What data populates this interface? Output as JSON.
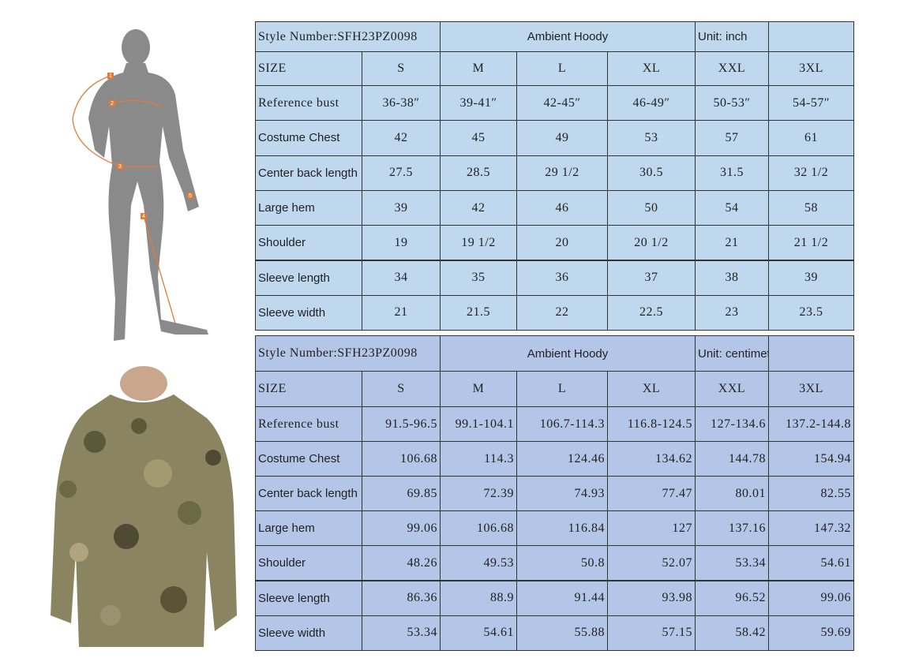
{
  "figure": {
    "markers": [
      "1",
      "2",
      "3",
      "4",
      "5"
    ]
  },
  "tables": [
    {
      "header": {
        "style": "Style Number:SFH23PZ0098",
        "name": "Ambient Hoody",
        "unit": "Unit: inch"
      },
      "size_label": "SIZE",
      "sizes": [
        "S",
        "M",
        "L",
        "XL",
        "XXL",
        "3XL"
      ],
      "rows": [
        {
          "label": "Reference bust",
          "values": [
            "36-38″",
            "39-41″",
            "42-45″",
            "46-49″",
            "50-53″",
            "54-57″"
          ]
        },
        {
          "label": "Costume Chest",
          "values": [
            "42",
            "45",
            "49",
            "53",
            "57",
            "61"
          ]
        },
        {
          "label": "Center back length",
          "values": [
            "27.5",
            "28.5",
            "29 1/2",
            "30.5",
            "31.5",
            "32 1/2"
          ]
        },
        {
          "label": "Large hem",
          "values": [
            "39",
            "42",
            "46",
            "50",
            "54",
            "58"
          ]
        },
        {
          "label": "Shoulder",
          "values": [
            "19",
            "19 1/2",
            "20",
            "20 1/2",
            "21",
            "21 1/2"
          ]
        },
        {
          "label": "Sleeve length",
          "values": [
            "34",
            "35",
            "36",
            "37",
            "38",
            "39"
          ]
        },
        {
          "label": "Sleeve width",
          "values": [
            "21",
            "21.5",
            "22",
            "22.5",
            "23",
            "23.5"
          ]
        }
      ]
    },
    {
      "header": {
        "style": "Style Number:SFH23PZ0098",
        "name": "Ambient Hoody",
        "unit": "Unit: centimeter"
      },
      "size_label": "SIZE",
      "sizes": [
        "S",
        "M",
        "L",
        "XL",
        "XXL",
        "3XL"
      ],
      "rows": [
        {
          "label": "Reference bust",
          "values": [
            "91.5-96.5",
            "99.1-104.1",
            "106.7-114.3",
            "116.8-124.5",
            "127-134.6",
            "137.2-144.8"
          ]
        },
        {
          "label": "Costume Chest",
          "values": [
            "106.68",
            "114.3",
            "124.46",
            "134.62",
            "144.78",
            "154.94"
          ]
        },
        {
          "label": "Center back length",
          "values": [
            "69.85",
            "72.39",
            "74.93",
            "77.47",
            "80.01",
            "82.55"
          ]
        },
        {
          "label": "Large hem",
          "values": [
            "99.06",
            "106.68",
            "116.84",
            "127",
            "137.16",
            "147.32"
          ]
        },
        {
          "label": "Shoulder",
          "values": [
            "48.26",
            "49.53",
            "50.8",
            "52.07",
            "53.34",
            "54.61"
          ]
        },
        {
          "label": "Sleeve length",
          "values": [
            "86.36",
            "88.9",
            "91.44",
            "93.98",
            "96.52",
            "99.06"
          ]
        },
        {
          "label": "Sleeve width",
          "values": [
            "53.34",
            "54.61",
            "55.88",
            "57.15",
            "58.42",
            "59.69"
          ]
        }
      ]
    }
  ]
}
